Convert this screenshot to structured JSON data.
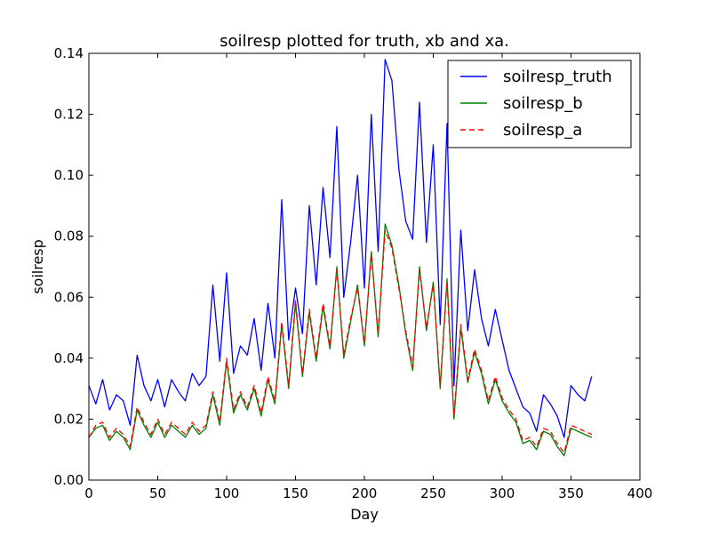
{
  "chart_data": {
    "type": "line",
    "title": "soilresp plotted for truth, xb and xa.",
    "xlabel": "Day",
    "ylabel": "soilresp",
    "xlim": [
      0,
      400
    ],
    "ylim": [
      0,
      0.14
    ],
    "xticks": [
      0,
      50,
      100,
      150,
      200,
      250,
      300,
      350,
      400
    ],
    "xtick_labels": [
      "0",
      "50",
      "100",
      "150",
      "200",
      "250",
      "300",
      "350",
      "400"
    ],
    "yticks": [
      0,
      0.02,
      0.04,
      0.06,
      0.08,
      0.1,
      0.12,
      0.14
    ],
    "ytick_labels": [
      "0.00",
      "0.02",
      "0.04",
      "0.06",
      "0.08",
      "0.10",
      "0.12",
      "0.14"
    ],
    "grid": false,
    "legend_position": "top-right",
    "x": [
      0,
      5,
      10,
      15,
      20,
      25,
      30,
      35,
      40,
      45,
      50,
      55,
      60,
      65,
      70,
      75,
      80,
      85,
      90,
      95,
      100,
      105,
      110,
      115,
      120,
      125,
      130,
      135,
      140,
      145,
      150,
      155,
      160,
      165,
      170,
      175,
      180,
      185,
      190,
      195,
      200,
      205,
      210,
      215,
      220,
      225,
      230,
      235,
      240,
      245,
      250,
      255,
      260,
      265,
      270,
      275,
      280,
      285,
      290,
      295,
      300,
      305,
      310,
      315,
      320,
      325,
      330,
      335,
      340,
      345,
      350,
      355,
      360,
      365
    ],
    "series": [
      {
        "name": "soilresp_truth",
        "color": "#0000ff",
        "style": "solid",
        "values": [
          0.031,
          0.025,
          0.033,
          0.023,
          0.028,
          0.026,
          0.018,
          0.041,
          0.031,
          0.026,
          0.033,
          0.024,
          0.033,
          0.029,
          0.026,
          0.035,
          0.031,
          0.034,
          0.064,
          0.039,
          0.068,
          0.035,
          0.044,
          0.041,
          0.053,
          0.036,
          0.058,
          0.04,
          0.092,
          0.046,
          0.063,
          0.048,
          0.09,
          0.064,
          0.096,
          0.073,
          0.116,
          0.06,
          0.078,
          0.1,
          0.063,
          0.12,
          0.075,
          0.138,
          0.131,
          0.102,
          0.085,
          0.079,
          0.124,
          0.078,
          0.11,
          0.051,
          0.117,
          0.031,
          0.082,
          0.049,
          0.069,
          0.053,
          0.044,
          0.056,
          0.046,
          0.036,
          0.03,
          0.024,
          0.022,
          0.016,
          0.028,
          0.025,
          0.021,
          0.014,
          0.031,
          0.028,
          0.026,
          0.034
        ]
      },
      {
        "name": "soilresp_b",
        "color": "#008000",
        "style": "solid",
        "values": [
          0.014,
          0.017,
          0.018,
          0.013,
          0.016,
          0.014,
          0.01,
          0.023,
          0.018,
          0.014,
          0.019,
          0.014,
          0.018,
          0.016,
          0.014,
          0.018,
          0.015,
          0.017,
          0.028,
          0.018,
          0.039,
          0.022,
          0.028,
          0.023,
          0.03,
          0.021,
          0.033,
          0.025,
          0.051,
          0.03,
          0.058,
          0.034,
          0.055,
          0.039,
          0.057,
          0.043,
          0.07,
          0.04,
          0.052,
          0.064,
          0.044,
          0.075,
          0.047,
          0.084,
          0.077,
          0.064,
          0.048,
          0.036,
          0.07,
          0.049,
          0.065,
          0.03,
          0.066,
          0.02,
          0.05,
          0.032,
          0.042,
          0.035,
          0.025,
          0.033,
          0.026,
          0.022,
          0.019,
          0.012,
          0.013,
          0.01,
          0.016,
          0.015,
          0.011,
          0.008,
          0.017,
          0.016,
          0.015,
          0.014
        ]
      },
      {
        "name": "soilresp_a",
        "color": "#ff0000",
        "style": "dashed",
        "values": [
          0.014,
          0.018,
          0.019,
          0.014,
          0.017,
          0.015,
          0.011,
          0.024,
          0.019,
          0.015,
          0.02,
          0.015,
          0.019,
          0.017,
          0.015,
          0.019,
          0.016,
          0.018,
          0.029,
          0.019,
          0.04,
          0.023,
          0.029,
          0.024,
          0.031,
          0.022,
          0.034,
          0.026,
          0.052,
          0.031,
          0.059,
          0.035,
          0.056,
          0.04,
          0.058,
          0.044,
          0.069,
          0.041,
          0.053,
          0.063,
          0.045,
          0.074,
          0.048,
          0.082,
          0.076,
          0.063,
          0.049,
          0.037,
          0.069,
          0.05,
          0.064,
          0.031,
          0.065,
          0.021,
          0.051,
          0.033,
          0.043,
          0.036,
          0.026,
          0.034,
          0.027,
          0.023,
          0.02,
          0.013,
          0.014,
          0.011,
          0.017,
          0.016,
          0.012,
          0.009,
          0.018,
          0.017,
          0.016,
          0.015
        ]
      }
    ]
  }
}
